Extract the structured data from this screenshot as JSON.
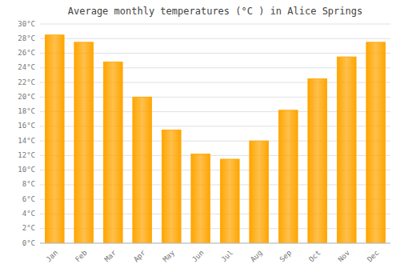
{
  "chart_data": {
    "type": "bar",
    "title": "Average monthly temperatures (°C ) in Alice Springs",
    "categories": [
      "Jan",
      "Feb",
      "Mar",
      "Apr",
      "May",
      "Jun",
      "Jul",
      "Aug",
      "Sep",
      "Oct",
      "Nov",
      "Dec"
    ],
    "values": [
      28.5,
      27.5,
      24.8,
      20.0,
      15.5,
      12.2,
      11.5,
      14.0,
      18.2,
      22.5,
      25.5,
      27.5
    ],
    "color": "#FFA500",
    "ylim": [
      0,
      30
    ],
    "yticks": [
      {
        "value": 0,
        "label": "0°C"
      },
      {
        "value": 2,
        "label": "2°C"
      },
      {
        "value": 4,
        "label": "4°C"
      },
      {
        "value": 6,
        "label": "6°C"
      },
      {
        "value": 8,
        "label": "8°C"
      },
      {
        "value": 10,
        "label": "10°C"
      },
      {
        "value": 12,
        "label": "12°C"
      },
      {
        "value": 14,
        "label": "14°C"
      },
      {
        "value": 16,
        "label": "16°C"
      },
      {
        "value": 18,
        "label": "18°C"
      },
      {
        "value": 20,
        "label": "20°C"
      },
      {
        "value": 22,
        "label": "22°C"
      },
      {
        "value": 24,
        "label": "24°C"
      },
      {
        "value": 26,
        "label": "26°C"
      },
      {
        "value": 28,
        "label": "28°C"
      },
      {
        "value": 30,
        "label": "30°C"
      }
    ],
    "grid": true
  }
}
